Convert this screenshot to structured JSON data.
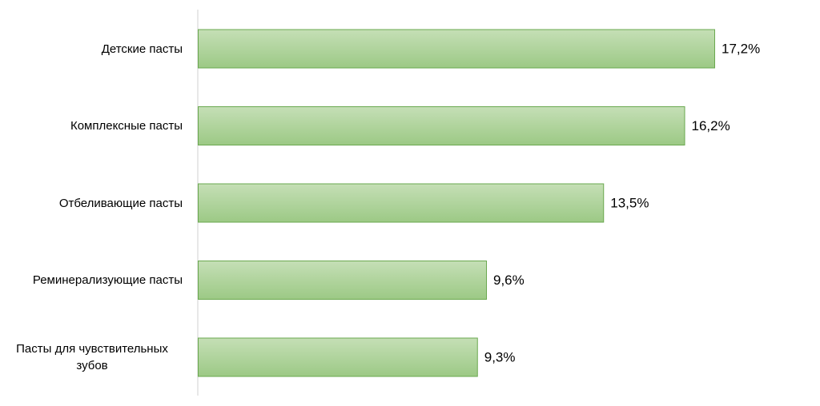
{
  "chart_data": {
    "type": "bar",
    "orientation": "horizontal",
    "categories": [
      "Детские пасты",
      "Комплексные пасты",
      "Отбеливающие пасты",
      "Реминерализующие пасты",
      "Пасты для чувствительных зубов"
    ],
    "values": [
      17.2,
      16.2,
      13.5,
      9.6,
      9.3
    ],
    "value_labels": [
      "17,2%",
      "16,2%",
      "13,5%",
      "9,6%",
      "9,3%"
    ],
    "color": "#a9d18e"
  }
}
